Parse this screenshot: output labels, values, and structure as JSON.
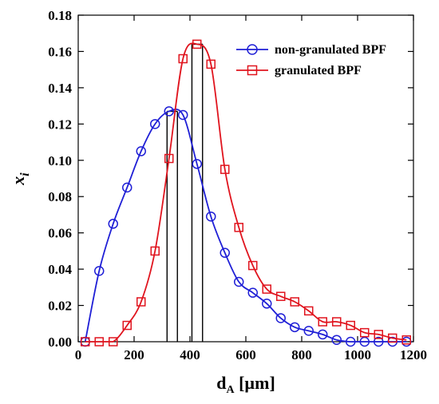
{
  "chart_data": {
    "type": "line",
    "xlabel": "d",
    "xlabel_sub": "A",
    "xlabel_unit": " [µm]",
    "ylabel": "x",
    "ylabel_sub": "i",
    "xlim": [
      0,
      1200
    ],
    "ylim": [
      0,
      0.18
    ],
    "xticks": [
      "0",
      "200",
      "400",
      "600",
      "800",
      "1000",
      "1200"
    ],
    "yticks": [
      "0.00",
      "0.02",
      "0.04",
      "0.06",
      "0.08",
      "0.10",
      "0.12",
      "0.14",
      "0.16",
      "0.18"
    ],
    "grid": false,
    "legend_position": "top-right",
    "series": [
      {
        "name": "non-granulated BPF",
        "color": "#1f1fd6",
        "marker": "circle",
        "x": [
          25,
          75,
          125,
          175,
          225,
          275,
          325,
          375,
          425,
          475,
          525,
          575,
          625,
          675,
          725,
          775,
          825,
          875,
          925,
          975,
          1025,
          1075,
          1125,
          1175
        ],
        "y": [
          0.0,
          0.039,
          0.065,
          0.085,
          0.105,
          0.12,
          0.127,
          0.125,
          0.098,
          0.069,
          0.049,
          0.033,
          0.027,
          0.021,
          0.013,
          0.008,
          0.006,
          0.004,
          0.001,
          0.0,
          0.0,
          0.0,
          0.0,
          0.0
        ]
      },
      {
        "name": "granulated BPF",
        "color": "#e0141e",
        "marker": "square",
        "x": [
          25,
          75,
          125,
          175,
          225,
          275,
          325,
          375,
          425,
          475,
          525,
          575,
          625,
          675,
          725,
          775,
          825,
          875,
          925,
          975,
          1025,
          1075,
          1125,
          1175
        ],
        "y": [
          0.0,
          0.0,
          0.0,
          0.009,
          0.022,
          0.05,
          0.101,
          0.156,
          0.164,
          0.153,
          0.095,
          0.063,
          0.042,
          0.029,
          0.025,
          0.022,
          0.017,
          0.011,
          0.011,
          0.009,
          0.005,
          0.004,
          0.002,
          0.001
        ]
      }
    ],
    "vertical_markers": [
      {
        "x": 318,
        "y": 0.127
      },
      {
        "x": 355,
        "y": 0.127
      },
      {
        "x": 407,
        "y": 0.164
      },
      {
        "x": 445,
        "y": 0.164
      }
    ]
  }
}
